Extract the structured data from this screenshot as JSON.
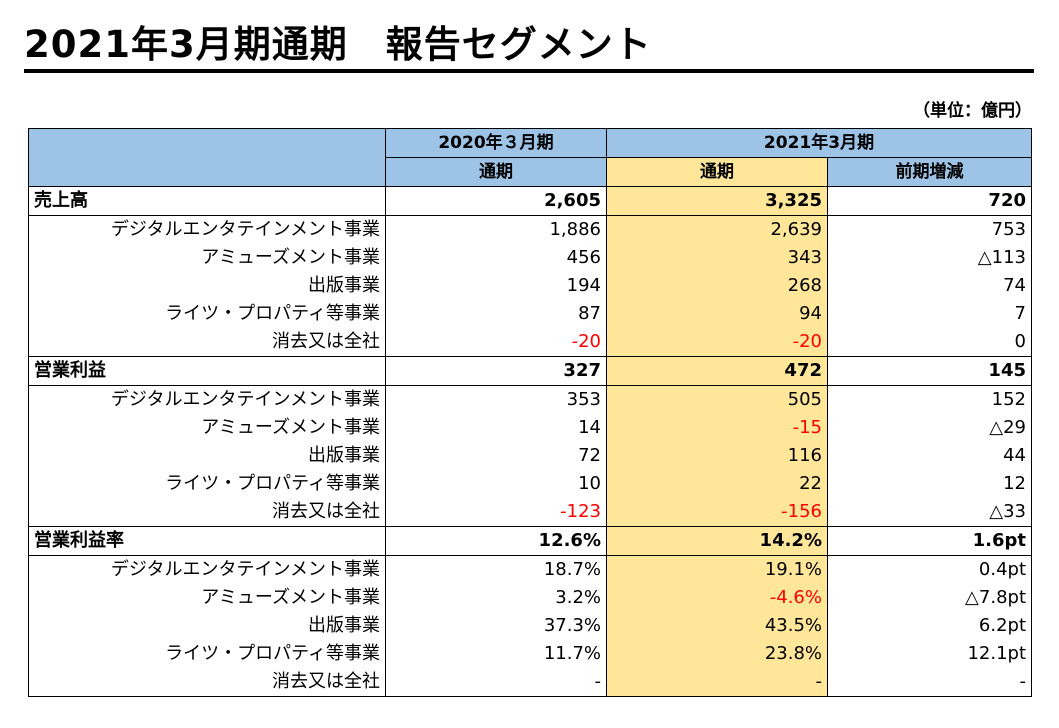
{
  "title": "2021年3月期通期　報告セグメント",
  "unit": "（単位：億円）",
  "headers": {
    "fy2020": "2020年３月期",
    "fy2021": "2021年3月期",
    "full_year_a": "通期",
    "full_year_b": "通期",
    "yoy": "前期増減"
  },
  "colors": {
    "header_blue": "#9dc3e6",
    "highlight_yellow": "#ffe699",
    "negative_red": "#ff0000"
  },
  "sections": [
    {
      "label": "売上高",
      "total": {
        "fy2020": "2,605",
        "fy2021": "3,325",
        "yoy": "720"
      },
      "rows": [
        {
          "label": "デジタルエンタテインメント事業",
          "fy2020": "1,886",
          "fy2021": "2,639",
          "yoy": "753",
          "neg2020": false,
          "neg2021": false
        },
        {
          "label": "アミューズメント事業",
          "fy2020": "456",
          "fy2021": "343",
          "yoy": "△113",
          "neg2020": false,
          "neg2021": false
        },
        {
          "label": "出版事業",
          "fy2020": "194",
          "fy2021": "268",
          "yoy": "74",
          "neg2020": false,
          "neg2021": false
        },
        {
          "label": "ライツ・プロパティ等事業",
          "fy2020": "87",
          "fy2021": "94",
          "yoy": "7",
          "neg2020": false,
          "neg2021": false
        },
        {
          "label": "消去又は全社",
          "fy2020": "-20",
          "fy2021": "-20",
          "yoy": "0",
          "neg2020": true,
          "neg2021": true
        }
      ]
    },
    {
      "label": "営業利益",
      "total": {
        "fy2020": "327",
        "fy2021": "472",
        "yoy": "145"
      },
      "rows": [
        {
          "label": "デジタルエンタテインメント事業",
          "fy2020": "353",
          "fy2021": "505",
          "yoy": "152",
          "neg2020": false,
          "neg2021": false
        },
        {
          "label": "アミューズメント事業",
          "fy2020": "14",
          "fy2021": "-15",
          "yoy": "△29",
          "neg2020": false,
          "neg2021": true
        },
        {
          "label": "出版事業",
          "fy2020": "72",
          "fy2021": "116",
          "yoy": "44",
          "neg2020": false,
          "neg2021": false
        },
        {
          "label": "ライツ・プロパティ等事業",
          "fy2020": "10",
          "fy2021": "22",
          "yoy": "12",
          "neg2020": false,
          "neg2021": false
        },
        {
          "label": "消去又は全社",
          "fy2020": "-123",
          "fy2021": "-156",
          "yoy": "△33",
          "neg2020": true,
          "neg2021": true
        }
      ]
    },
    {
      "label": "営業利益率",
      "total": {
        "fy2020": "12.6%",
        "fy2021": "14.2%",
        "yoy": "1.6pt"
      },
      "rows": [
        {
          "label": "デジタルエンタテインメント事業",
          "fy2020": "18.7%",
          "fy2021": "19.1%",
          "yoy": "0.4pt",
          "neg2020": false,
          "neg2021": false
        },
        {
          "label": "アミューズメント事業",
          "fy2020": "3.2%",
          "fy2021": "-4.6%",
          "yoy": "△7.8pt",
          "neg2020": false,
          "neg2021": true
        },
        {
          "label": "出版事業",
          "fy2020": "37.3%",
          "fy2021": "43.5%",
          "yoy": "6.2pt",
          "neg2020": false,
          "neg2021": false
        },
        {
          "label": "ライツ・プロパティ等事業",
          "fy2020": "11.7%",
          "fy2021": "23.8%",
          "yoy": "12.1pt",
          "neg2020": false,
          "neg2021": false
        },
        {
          "label": "消去又は全社",
          "fy2020": "-",
          "fy2021": "-",
          "yoy": "-",
          "neg2020": false,
          "neg2021": false
        }
      ]
    }
  ]
}
